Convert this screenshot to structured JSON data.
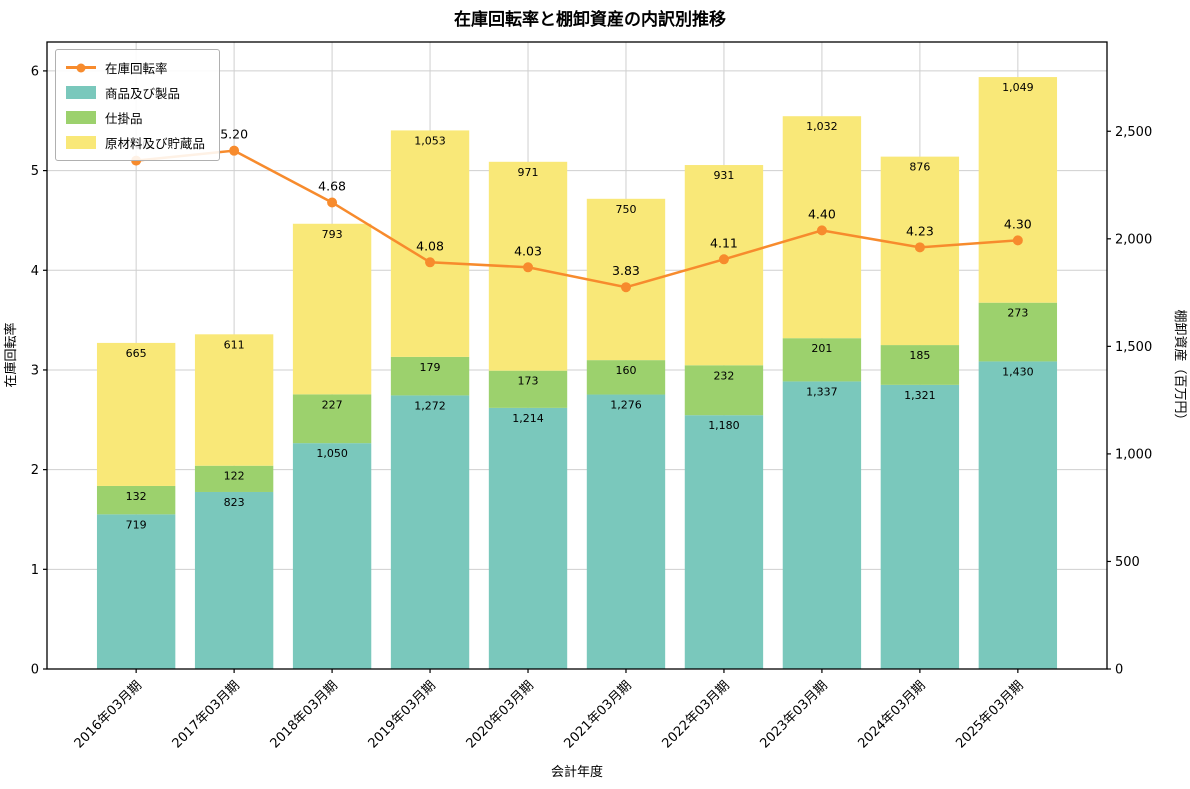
{
  "chart_data": {
    "type": "bar",
    "subtype": "stacked-bars-with-line",
    "title": "在庫回転率と棚卸資産の内訳別推移",
    "xlabel": "会計年度",
    "ylabel_left": "在庫回転率",
    "ylabel_right": "棚卸資産（百万円）",
    "categories": [
      "2016年03月期",
      "2017年03月期",
      "2018年03月期",
      "2019年03月期",
      "2020年03月期",
      "2021年03月期",
      "2022年03月期",
      "2023年03月期",
      "2024年03月期",
      "2025年03月期"
    ],
    "series": [
      {
        "name": "商品及び製品",
        "color": "#7ac8bc",
        "values": [
          719,
          823,
          1050,
          1272,
          1214,
          1276,
          1180,
          1337,
          1321,
          1430
        ]
      },
      {
        "name": "仕掛品",
        "color": "#9cd16d",
        "values": [
          132,
          122,
          227,
          179,
          173,
          160,
          232,
          201,
          185,
          273
        ]
      },
      {
        "name": "原材料及び貯蔵品",
        "color": "#f9e878",
        "values": [
          665,
          611,
          793,
          1053,
          971,
          750,
          931,
          1032,
          876,
          1049
        ]
      }
    ],
    "line": {
      "name": "在庫回転率",
      "color": "#f78b2d",
      "axis": "left",
      "values": [
        5.1,
        5.2,
        4.68,
        4.08,
        4.03,
        3.83,
        4.11,
        4.4,
        4.23,
        4.3
      ]
    },
    "axes": {
      "left": {
        "ticks": [
          0,
          1,
          2,
          3,
          4,
          5,
          6
        ],
        "max": 6.29
      },
      "right": {
        "ticks": [
          0,
          500,
          1000,
          1500,
          2000,
          2500
        ],
        "max": 2915
      }
    },
    "grid": true,
    "legend_position": "upper left"
  }
}
